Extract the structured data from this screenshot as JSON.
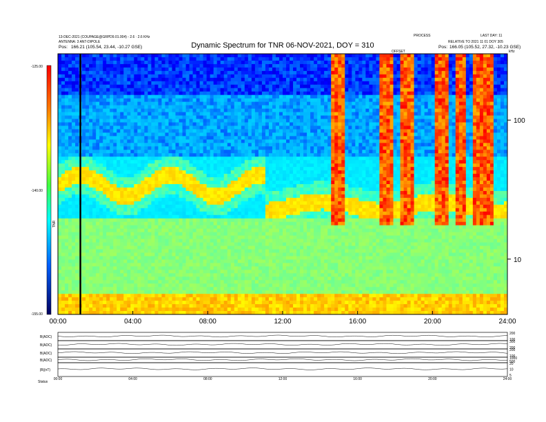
{
  "header": {
    "title": "Dynamic Spectrum for TNR 06-NOV-2021, DOY = 310",
    "left_line1": "13-DEC-2021 (COUPAGE@GRPD9.01.004) - 2.6 · 2.6 KHz",
    "left_line2": "ANTENNA: 3 ANT-DIPOLE",
    "left_pos_label": "Pos:",
    "left_pos": "166.21 (105.54, 23.44, -10.27 GSE)",
    "right_line1": "PROCESS",
    "right_line2": "LAST DAY: 11",
    "right_line3": "RELATIVE TO 2021 11 01 DOY 305",
    "right_pos_label": "Pos:",
    "right_pos": "166.05 (105.52, 27.32, -10.23 GSE)",
    "marker_label": "OFFSET",
    "corner_label": "kHz"
  },
  "colorbar": {
    "top_label": "-125.00",
    "mid_label": "-140.00",
    "bottom_label": "-155.00",
    "axis_label": "TNR"
  },
  "chart_data": [
    {
      "type": "heatmap",
      "title": "Dynamic Spectrum for TNR 06-NOV-2021, DOY = 310",
      "x_ticks": [
        "00:00",
        "04:00",
        "08:00",
        "12:00",
        "16:00",
        "20:00",
        "24:00"
      ],
      "x_range_hours": [
        0,
        24
      ],
      "y_scale": "log",
      "y_ticks": [
        "100",
        "10"
      ],
      "y_unit": "kHz",
      "y_range": [
        4,
        300
      ],
      "z_range": [
        -155,
        -125
      ],
      "colormap": [
        "#000080",
        "#0000ff",
        "#00b4ff",
        "#00ffff",
        "#80ff80",
        "#ffff00",
        "#ff8000",
        "#ff0000"
      ],
      "features": {
        "background_band_kHz": [
          4,
          20
        ],
        "emission_band_start_kHz": 35,
        "emission_band_end_kHz": 20,
        "vertical_marker_hour": 1.2,
        "red_bursts_hours": [
          15.0,
          17.5,
          18.6,
          20.5,
          21.5,
          22.5,
          23.0
        ]
      }
    },
    {
      "type": "line",
      "title": "",
      "panels": [
        {
          "label": "B(ADC)",
          "right_ticks": [
            "200",
            "100"
          ]
        },
        {
          "label": "B(ADC)",
          "right_ticks": [
            "300",
            "200"
          ]
        },
        {
          "label": "B(ADC)",
          "right_ticks": [
            "200",
            "100"
          ]
        },
        {
          "label": "B(ADC)",
          "right_ticks": [
            "1000",
            "500"
          ]
        },
        {
          "label": "|B|(nT)",
          "right_ticks": [
            "20",
            "10",
            "5"
          ]
        }
      ],
      "x_ticks": [
        "00:00",
        "04:00",
        "08:00",
        "12:00",
        "16:00",
        "20:00",
        "24:00"
      ],
      "footer_label": "Status"
    }
  ]
}
